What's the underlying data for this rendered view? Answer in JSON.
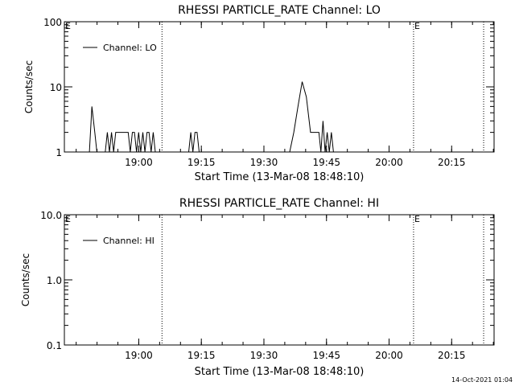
{
  "footer_timestamp": "14-Oct-2021 01:04",
  "chart_data": [
    {
      "type": "line",
      "title": "RHESSI PARTICLE_RATE Channel: LO",
      "xlabel": "Start Time (13-Mar-08 18:48:10)",
      "ylabel": "Counts/sec",
      "yscale": "log",
      "ylim": [
        1,
        100
      ],
      "y_ticks": [
        1,
        10,
        100
      ],
      "y_tick_labels": [
        "1",
        "10",
        "100"
      ],
      "x_tick_labels": [
        "19:00",
        "19:15",
        "19:30",
        "19:45",
        "20:00",
        "20:15"
      ],
      "x_ticks_min": [
        11.83,
        26.83,
        41.83,
        56.83,
        71.83,
        86.83
      ],
      "xlim_min": [
        -6,
        97
      ],
      "grid": false,
      "legend": {
        "position": "top-left",
        "entries": [
          "Channel: LO"
        ]
      },
      "markers": [
        {
          "x_min": 17.4,
          "label": ""
        },
        {
          "x_min": 77.7,
          "label": "E"
        },
        {
          "x_min": 94.5,
          "label": ""
        }
      ],
      "corner_label": "E",
      "series": [
        {
          "name": "Channel: LO",
          "x": [
            0.0,
            0.6,
            1.3,
            1.8,
            2.3,
            2.8,
            3.3,
            3.8,
            4.3,
            4.8,
            5.3,
            5.8,
            6.3,
            6.8,
            7.3,
            7.8,
            8.3,
            8.8,
            9.3,
            9.8,
            10.3,
            10.8,
            11.3,
            11.8,
            12.3,
            12.8,
            13.3,
            13.8,
            14.3,
            14.8,
            15.3,
            15.8,
            16.3,
            16.8,
            17.3,
            17.8,
            18.3,
            18.8,
            19.3,
            19.8,
            20.3,
            20.8,
            21.3,
            21.8,
            22.3,
            22.8,
            23.3,
            23.8,
            24.3,
            24.8,
            25.3,
            25.8,
            26.3,
            26.8
          ],
          "y": [
            1,
            5,
            2,
            1,
            1,
            1,
            1,
            1,
            2,
            1,
            2,
            1,
            2,
            2,
            2,
            2,
            2,
            2,
            2,
            1,
            2,
            2,
            1,
            2,
            1,
            2,
            1,
            2,
            2,
            1,
            2,
            1,
            1,
            1,
            1,
            1,
            1,
            1,
            1,
            1,
            1,
            1,
            1,
            1,
            1,
            1,
            1,
            1,
            2,
            1,
            2,
            2,
            1,
            1
          ]
        },
        {
          "name": "",
          "x": [
            48.0,
            49.0,
            50.0,
            51.0,
            52.0,
            53.0,
            54.0,
            55.0,
            55.5,
            56.0,
            56.5,
            57.0,
            57.5,
            58.0,
            58.5,
            59.0
          ],
          "y": [
            1,
            2,
            5,
            12,
            7,
            2,
            2,
            2,
            1,
            3,
            1,
            2,
            1,
            2,
            1,
            1
          ]
        }
      ]
    },
    {
      "type": "line",
      "title": "RHESSI PARTICLE_RATE Channel: HI",
      "xlabel": "Start Time (13-Mar-08 18:48:10)",
      "ylabel": "Counts/sec",
      "yscale": "log",
      "ylim": [
        0.1,
        10
      ],
      "y_ticks": [
        0.1,
        1,
        10
      ],
      "y_tick_labels": [
        "0.1",
        "1.0",
        "10.0"
      ],
      "x_tick_labels": [
        "19:00",
        "19:15",
        "19:30",
        "19:45",
        "20:00",
        "20:15"
      ],
      "x_ticks_min": [
        11.83,
        26.83,
        41.83,
        56.83,
        71.83,
        86.83
      ],
      "xlim_min": [
        -6,
        97
      ],
      "grid": false,
      "legend": {
        "position": "top-left",
        "entries": [
          "Channel: HI"
        ]
      },
      "markers": [
        {
          "x_min": 17.4,
          "label": ""
        },
        {
          "x_min": 77.7,
          "label": "E"
        },
        {
          "x_min": 94.5,
          "label": ""
        }
      ],
      "corner_label": "E",
      "series": []
    }
  ]
}
